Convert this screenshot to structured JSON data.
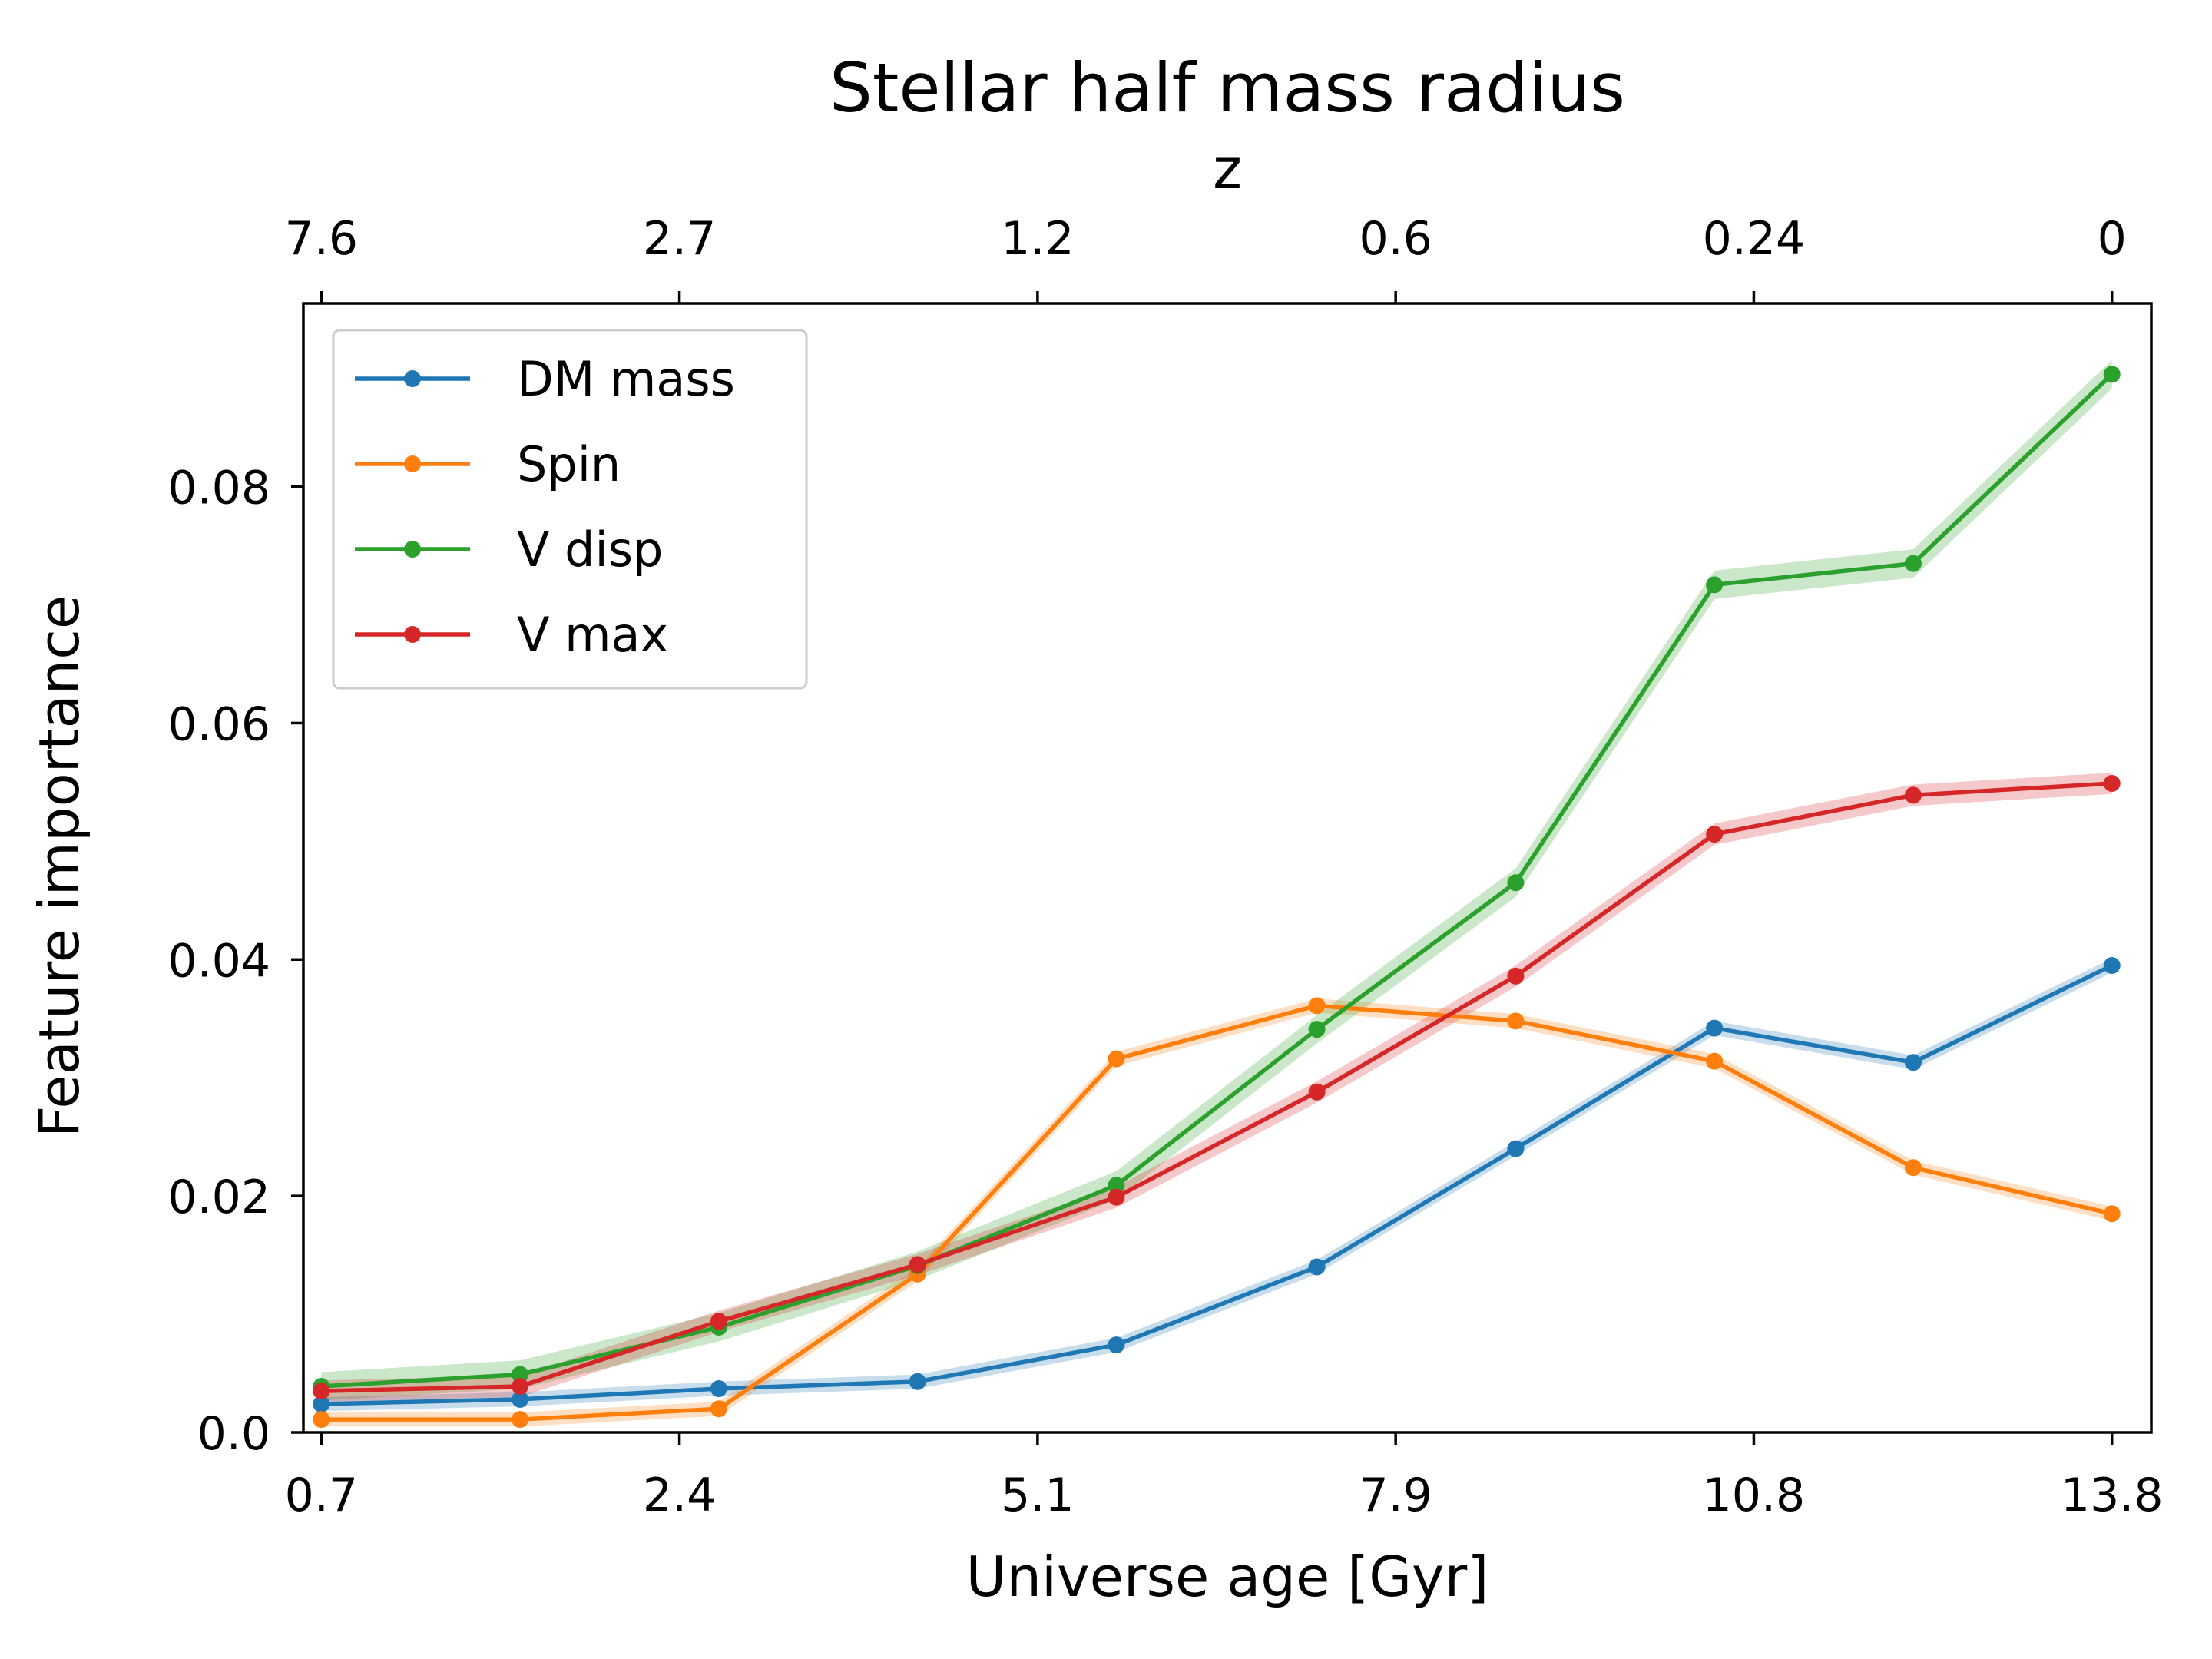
{
  "chart_data": {
    "type": "line",
    "title": "Stellar half mass radius",
    "xlabel": "Universe age [Gyr]",
    "ylabel": "Feature importance",
    "top_xlabel": "z",
    "x": [
      0,
      1,
      2,
      3,
      4,
      5,
      6,
      7,
      8,
      9
    ],
    "x_ticks": [
      {
        "pos": 0,
        "label": "0.7"
      },
      {
        "pos": 2,
        "label": "2.4"
      },
      {
        "pos": 4,
        "label": "5.1"
      },
      {
        "pos": 6,
        "label": "7.9"
      },
      {
        "pos": 8,
        "label": "10.8"
      },
      {
        "pos": 10,
        "label": "13.8"
      }
    ],
    "top_x_ticks": [
      {
        "pos": 0,
        "label": "7.6"
      },
      {
        "pos": 2,
        "label": "2.7"
      },
      {
        "pos": 4,
        "label": "1.2"
      },
      {
        "pos": 6,
        "label": "0.6"
      },
      {
        "pos": 8,
        "label": "0.24"
      },
      {
        "pos": 10,
        "label": "0"
      }
    ],
    "y_ticks": [
      {
        "value": 0.0,
        "label": "0.0"
      },
      {
        "value": 0.02,
        "label": "0.02"
      },
      {
        "value": 0.04,
        "label": "0.04"
      },
      {
        "value": 0.06,
        "label": "0.06"
      },
      {
        "value": 0.08,
        "label": "0.08"
      }
    ],
    "x_positions": [
      0,
      1.11,
      2.22,
      3.33,
      4.44,
      5.56,
      6.67,
      7.78,
      8.89,
      10
    ],
    "xlim": [
      -0.1,
      10.22
    ],
    "ylim": [
      0,
      0.0955
    ],
    "legend_position": "top-left",
    "series": [
      {
        "name": "DM mass",
        "color": "#1f77b4",
        "values": [
          0.0024,
          0.0028,
          0.0037,
          0.0043,
          0.0074,
          0.014,
          0.024,
          0.0342,
          0.0313,
          0.0395
        ],
        "band": 0.0006
      },
      {
        "name": "Spin",
        "color": "#ff7f0e",
        "values": [
          0.0011,
          0.0011,
          0.002,
          0.0134,
          0.0316,
          0.0361,
          0.0348,
          0.0314,
          0.0224,
          0.0185
        ],
        "band": 0.0006
      },
      {
        "name": "V disp",
        "color": "#2ca02c",
        "values": [
          0.0039,
          0.0049,
          0.0089,
          0.0141,
          0.0209,
          0.0341,
          0.0465,
          0.0717,
          0.0735,
          0.0895
        ],
        "band": 0.0012
      },
      {
        "name": "V max",
        "color": "#d62728",
        "values": [
          0.0035,
          0.0039,
          0.0094,
          0.0142,
          0.0199,
          0.0288,
          0.0386,
          0.0506,
          0.0539,
          0.0549
        ],
        "band": 0.0009
      }
    ]
  }
}
